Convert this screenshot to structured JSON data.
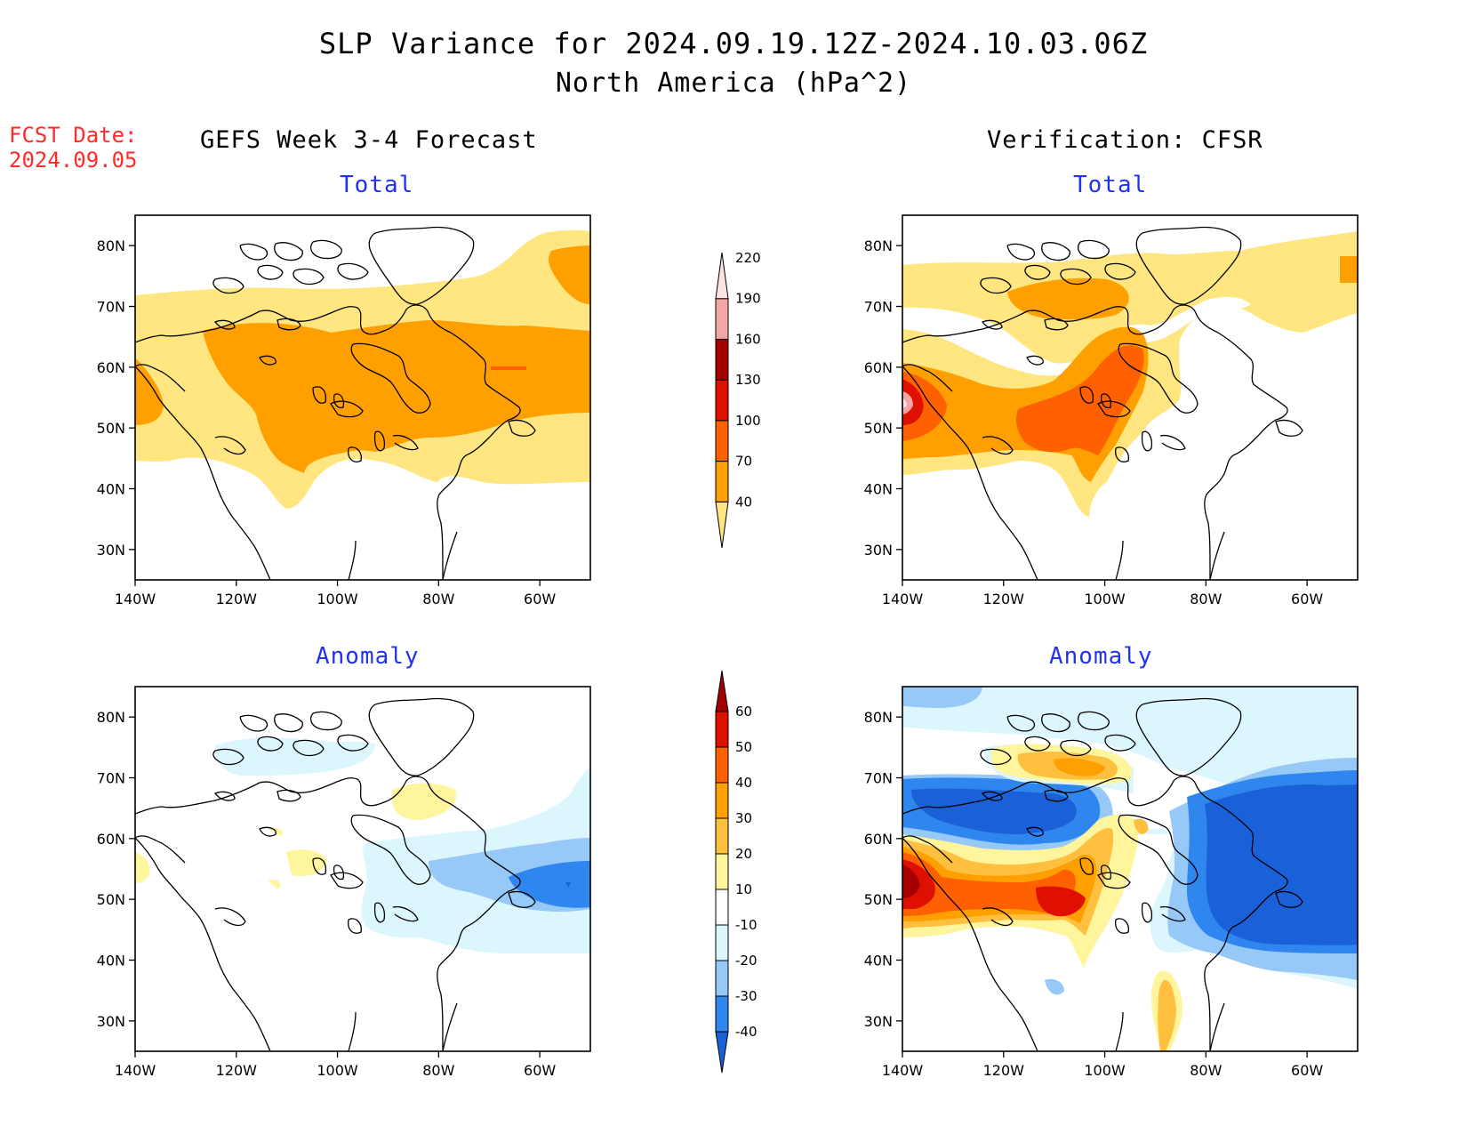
{
  "header": {
    "title": "SLP Variance for 2024.09.19.12Z-2024.10.03.06Z",
    "subtitle": "North America (hPa^2)",
    "fcst_label": "FCST Date:",
    "fcst_date": "2024.09.05"
  },
  "columns": {
    "left": "GEFS Week 3-4 Forecast",
    "right": "Verification: CFSR"
  },
  "panels": {
    "fcst_total": "Total",
    "fcst_anom": "Anomaly",
    "ver_total": "Total",
    "ver_anom": "Anomaly"
  },
  "axes": {
    "lat_labels": [
      "80N",
      "70N",
      "60N",
      "50N",
      "40N",
      "30N"
    ],
    "lon_labels": [
      "140W",
      "120W",
      "100W",
      "80W",
      "60W"
    ]
  },
  "colorbars": {
    "total": {
      "levels": [
        "40",
        "70",
        "100",
        "130",
        "160",
        "190",
        "220"
      ],
      "colors": [
        "#ffe680",
        "#ffa000",
        "#ff6000",
        "#e01000",
        "#a50000",
        "#f4a6a6",
        "#fce4e4"
      ]
    },
    "anomaly": {
      "levels": [
        "-40",
        "-30",
        "-20",
        "-10",
        "10",
        "20",
        "30",
        "40",
        "50",
        "60"
      ],
      "colors": [
        "#1a60d8",
        "#2f86ef",
        "#96c8f8",
        "#dcf6fd",
        "#ffffff",
        "#fff59d",
        "#ffc040",
        "#ffa000",
        "#ff6000",
        "#e01000",
        "#a50000"
      ]
    }
  }
}
